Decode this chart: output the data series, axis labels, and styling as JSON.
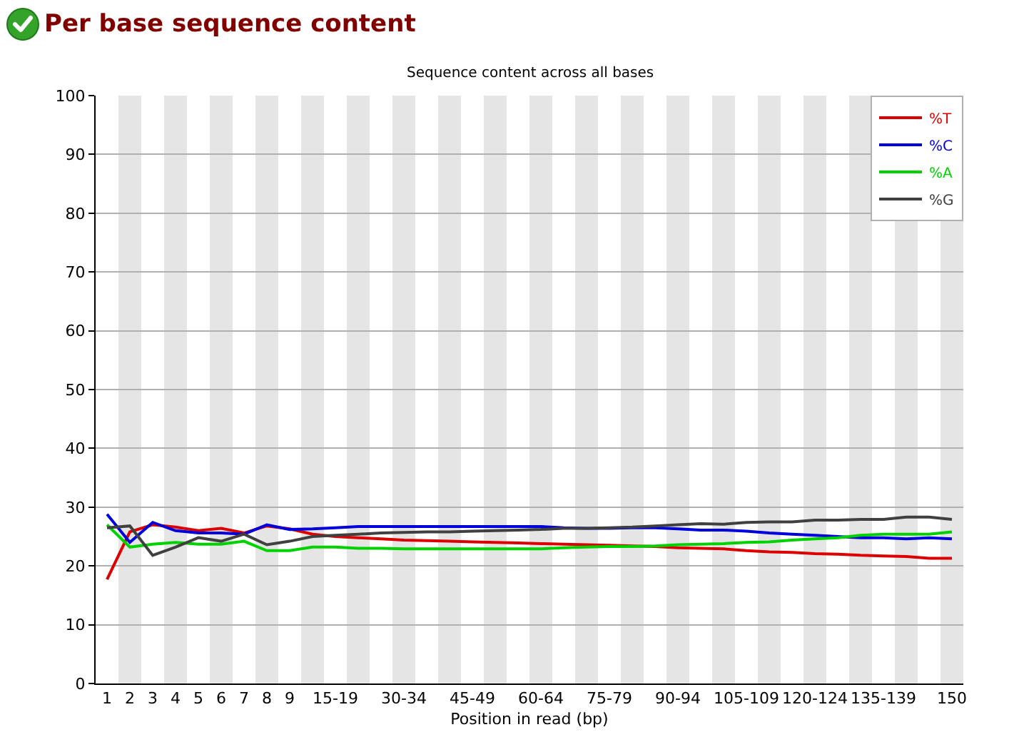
{
  "chart_data": {
    "type": "line",
    "title": "Per base sequence content",
    "subtitle": "Sequence content across all bases",
    "xlabel": "Position in read (bp)",
    "categories": [
      "1",
      "2",
      "3",
      "4",
      "5",
      "6",
      "7",
      "8",
      "9",
      null,
      "15-19",
      null,
      null,
      "30-34",
      null,
      null,
      "45-49",
      null,
      null,
      "60-64",
      null,
      null,
      "75-79",
      null,
      null,
      "90-94",
      null,
      null,
      "105-109",
      null,
      null,
      "120-124",
      null,
      null,
      "135-139",
      null,
      null,
      "150"
    ],
    "series": [
      {
        "name": "%T",
        "color": "#dc0000",
        "values": [
          17.7,
          25.8,
          27.0,
          26.6,
          26.0,
          26.4,
          25.6,
          26.8,
          26.3,
          25.4,
          25.0,
          24.8,
          24.6,
          24.4,
          24.3,
          24.2,
          24.1,
          24.0,
          23.9,
          23.8,
          23.7,
          23.6,
          23.5,
          23.4,
          23.3,
          23.1,
          23.0,
          22.9,
          22.6,
          22.4,
          22.3,
          22.1,
          22.0,
          21.8,
          21.7,
          21.6,
          21.3,
          21.3
        ]
      },
      {
        "name": "%C",
        "color": "#0000dc",
        "values": [
          28.8,
          24.0,
          27.4,
          26.0,
          25.6,
          25.6,
          25.4,
          27.0,
          26.2,
          26.3,
          26.5,
          26.7,
          26.7,
          26.7,
          26.7,
          26.7,
          26.7,
          26.7,
          26.7,
          26.7,
          26.5,
          26.4,
          26.4,
          26.5,
          26.5,
          26.3,
          26.1,
          26.1,
          25.9,
          25.6,
          25.4,
          25.2,
          25.0,
          24.8,
          24.8,
          24.6,
          24.8,
          24.6
        ]
      },
      {
        "name": "%A",
        "color": "#00d200",
        "values": [
          27.0,
          23.2,
          23.7,
          24.0,
          23.7,
          23.7,
          24.2,
          22.6,
          22.6,
          23.2,
          23.2,
          23.0,
          23.0,
          22.9,
          22.9,
          22.9,
          22.9,
          22.9,
          22.9,
          22.9,
          23.1,
          23.2,
          23.3,
          23.3,
          23.4,
          23.6,
          23.7,
          23.8,
          24.0,
          24.1,
          24.4,
          24.6,
          24.8,
          25.2,
          25.4,
          25.4,
          25.4,
          25.8
        ]
      },
      {
        "name": "%G",
        "color": "#404040",
        "values": [
          26.5,
          26.8,
          21.8,
          23.2,
          24.8,
          24.2,
          25.4,
          23.6,
          24.2,
          25.0,
          25.2,
          25.4,
          25.6,
          25.7,
          25.8,
          25.8,
          25.9,
          26.0,
          26.1,
          26.2,
          26.4,
          26.4,
          26.5,
          26.6,
          26.8,
          27.0,
          27.2,
          27.1,
          27.4,
          27.5,
          27.5,
          27.8,
          27.8,
          27.9,
          27.9,
          28.3,
          28.3,
          27.9
        ]
      }
    ],
    "ylim": [
      0,
      100
    ],
    "yticks": [
      0,
      10,
      20,
      30,
      40,
      50,
      60,
      70,
      80,
      90,
      100
    ],
    "grid": "y",
    "legend": "top right",
    "bands": [
      {
        "axis": "x",
        "from": "2",
        "to": "2",
        "color": "#e5e5e5"
      },
      {
        "axis": "x",
        "from": "4",
        "to": "4",
        "color": "#e5e5e5"
      },
      {
        "axis": "x",
        "from": "6",
        "to": "6",
        "color": "#e5e5e5"
      },
      {
        "axis": "x",
        "from": "8",
        "to": "8",
        "color": "#e5e5e5"
      },
      {
        "axis": "x",
        "from": "30-34",
        "to": "30-34",
        "color": "#e5e5e5"
      },
      {
        "axis": "x",
        "from": "60-64",
        "to": "60-64",
        "color": "#e5e5e5"
      },
      {
        "axis": "x",
        "from": "90-94",
        "to": "90-94",
        "color": "#e5e5e5"
      },
      {
        "axis": "x",
        "from": "120-124",
        "to": "120-124",
        "color": "#e5e5e5"
      },
      {
        "axis": "x",
        "from": "150",
        "to": "150",
        "color": "#e5e5e5"
      }
    ]
  }
}
